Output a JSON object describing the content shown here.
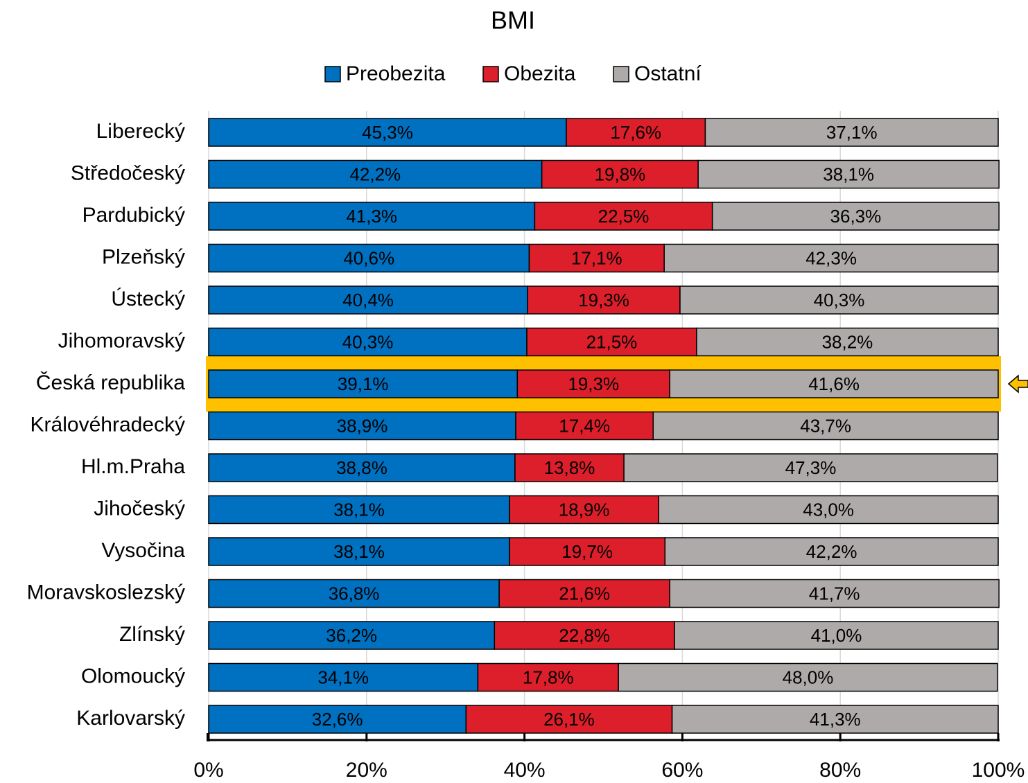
{
  "chart_data": {
    "type": "stacked-barh",
    "title": "BMI",
    "categories": [
      "Liberecký",
      "Středočeský",
      "Pardubický",
      "Plzeňský",
      "Ústecký",
      "Jihomoravský",
      "Česká republika",
      "Královéhradecký",
      "Hl.m.Praha",
      "Jihočeský",
      "Vysočina",
      "Moravskoslezský",
      "Zlínský",
      "Olomoucký",
      "Karlovarský"
    ],
    "series": [
      {
        "name": "Preobezita",
        "color": "#0070C0",
        "label_color": "#ffffff",
        "values": [
          45.3,
          42.2,
          41.3,
          40.6,
          40.4,
          40.3,
          39.1,
          38.9,
          38.8,
          38.1,
          38.1,
          36.8,
          36.2,
          34.1,
          32.6
        ],
        "value_labels": [
          "45,3%",
          "42,2%",
          "41,3%",
          "40,6%",
          "40,4%",
          "40,3%",
          "39,1%",
          "38,9%",
          "38,8%",
          "38,1%",
          "38,1%",
          "36,8%",
          "36,2%",
          "34,1%",
          "32,6%"
        ]
      },
      {
        "name": "Obezita",
        "color": "#DC1F2A",
        "label_color": "#ffffff",
        "values": [
          17.6,
          19.8,
          22.5,
          17.1,
          19.3,
          21.5,
          19.3,
          17.4,
          13.8,
          18.9,
          19.7,
          21.6,
          22.8,
          17.8,
          26.1
        ],
        "value_labels": [
          "17,6%",
          "19,8%",
          "22,5%",
          "17,1%",
          "19,3%",
          "21,5%",
          "19,3%",
          "17,4%",
          "13,8%",
          "18,9%",
          "19,7%",
          "21,6%",
          "22,8%",
          "17,8%",
          "26,1%"
        ]
      },
      {
        "name": "Ostatní",
        "color": "#AEAAAA",
        "label_color": "#000000",
        "values": [
          37.1,
          38.1,
          36.3,
          42.3,
          40.3,
          38.2,
          41.6,
          43.7,
          47.3,
          43.0,
          42.2,
          41.7,
          41.0,
          48.0,
          41.3
        ],
        "value_labels": [
          "37,1%",
          "38,1%",
          "36,3%",
          "42,3%",
          "40,3%",
          "38,2%",
          "41,6%",
          "43,7%",
          "47,3%",
          "43,0%",
          "42,2%",
          "41,7%",
          "41,0%",
          "48,0%",
          "41,3%"
        ]
      }
    ],
    "xlim": [
      0,
      100
    ],
    "xticks": [
      {
        "value": 0,
        "label": "0%"
      },
      {
        "value": 20,
        "label": "20%"
      },
      {
        "value": 40,
        "label": "40%"
      },
      {
        "value": 60,
        "label": "60%"
      },
      {
        "value": 80,
        "label": "80%"
      },
      {
        "value": 100,
        "label": "100%"
      }
    ],
    "grid": true,
    "highlight_index": 6,
    "highlight_color": "#FFC000",
    "legend": "top"
  }
}
